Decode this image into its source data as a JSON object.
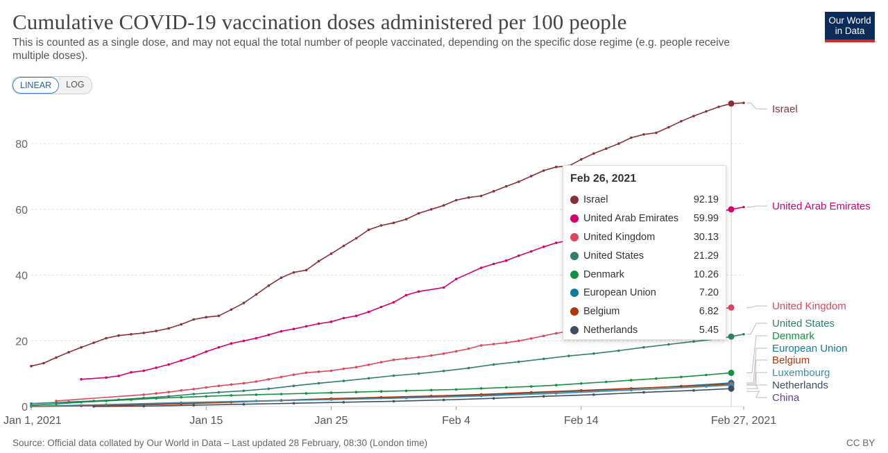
{
  "header": {
    "title": "Cumulative COVID-19 vaccination doses administered per 100 people",
    "subtitle": "This is counted as a single dose, and may not equal the total number of people vaccinated, depending on the specific dose regime (e.g. people receive multiple doses).",
    "logo_line1": "Our World",
    "logo_line2": "in Data"
  },
  "controls": {
    "linear_label": "LINEAR",
    "log_label": "LOG",
    "selected": "LINEAR"
  },
  "footer": {
    "source": "Source: Official data collated by Our World in Data – Last updated 28 February, 08:30 (London time)",
    "license": "CC BY"
  },
  "tooltip": {
    "date": "Feb 26, 2021",
    "rows": [
      {
        "name": "Israel",
        "value": "92.19",
        "color": "#883039"
      },
      {
        "name": "United Arab Emirates",
        "value": "59.99",
        "color": "#d5006e"
      },
      {
        "name": "United Kingdom",
        "value": "30.13",
        "color": "#e0455d"
      },
      {
        "name": "United States",
        "value": "21.29",
        "color": "#2f7f6c"
      },
      {
        "name": "Denmark",
        "value": "10.26",
        "color": "#14913e"
      },
      {
        "name": "European Union",
        "value": "7.20",
        "color": "#117aa0"
      },
      {
        "name": "Belgium",
        "value": "6.82",
        "color": "#b13507"
      },
      {
        "name": "Netherlands",
        "value": "5.45",
        "color": "#3c4e66"
      }
    ]
  },
  "chart_data": {
    "type": "line",
    "title": "Cumulative COVID-19 vaccination doses administered per 100 people",
    "x_range": [
      "2021-01-01",
      "2021-02-27"
    ],
    "x_ticks": [
      "Jan 1, 2021",
      "Jan 15",
      "Jan 25",
      "Feb 4",
      "Feb 14",
      "Feb 27, 2021"
    ],
    "y_range": [
      0,
      95
    ],
    "y_ticks": [
      0,
      20,
      40,
      60,
      80
    ],
    "grid": "horizontal-dashed",
    "hover_date": "2021-02-26",
    "series": [
      {
        "name": "Israel",
        "color": "#883039",
        "points": [
          [
            "2021-01-01",
            12.3
          ],
          [
            "2021-01-02",
            13.2
          ],
          [
            "2021-01-03",
            14.9
          ],
          [
            "2021-01-04",
            16.5
          ],
          [
            "2021-01-05",
            18.0
          ],
          [
            "2021-01-06",
            19.4
          ],
          [
            "2021-01-07",
            20.8
          ],
          [
            "2021-01-08",
            21.6
          ],
          [
            "2021-01-09",
            22.0
          ],
          [
            "2021-01-10",
            22.4
          ],
          [
            "2021-01-11",
            23.0
          ],
          [
            "2021-01-12",
            23.8
          ],
          [
            "2021-01-13",
            25.0
          ],
          [
            "2021-01-14",
            26.5
          ],
          [
            "2021-01-15",
            27.2
          ],
          [
            "2021-01-16",
            27.6
          ],
          [
            "2021-01-17",
            29.5
          ],
          [
            "2021-01-18",
            31.5
          ],
          [
            "2021-01-19",
            34.1
          ],
          [
            "2021-01-20",
            36.8
          ],
          [
            "2021-01-21",
            39.2
          ],
          [
            "2021-01-22",
            40.8
          ],
          [
            "2021-01-23",
            41.5
          ],
          [
            "2021-01-24",
            44.2
          ],
          [
            "2021-01-25",
            46.5
          ],
          [
            "2021-01-26",
            48.9
          ],
          [
            "2021-01-27",
            51.2
          ],
          [
            "2021-01-28",
            53.8
          ],
          [
            "2021-01-29",
            55.1
          ],
          [
            "2021-01-30",
            55.9
          ],
          [
            "2021-01-31",
            57.0
          ],
          [
            "2021-02-01",
            58.8
          ],
          [
            "2021-02-02",
            60.0
          ],
          [
            "2021-02-03",
            61.2
          ],
          [
            "2021-02-04",
            62.8
          ],
          [
            "2021-02-05",
            63.6
          ],
          [
            "2021-02-06",
            64.1
          ],
          [
            "2021-02-07",
            65.5
          ],
          [
            "2021-02-08",
            67.0
          ],
          [
            "2021-02-09",
            68.4
          ],
          [
            "2021-02-10",
            70.1
          ],
          [
            "2021-02-11",
            71.8
          ],
          [
            "2021-02-12",
            72.9
          ],
          [
            "2021-02-13",
            73.2
          ],
          [
            "2021-02-14",
            75.2
          ],
          [
            "2021-02-15",
            77.0
          ],
          [
            "2021-02-16",
            78.5
          ],
          [
            "2021-02-17",
            80.0
          ],
          [
            "2021-02-18",
            81.8
          ],
          [
            "2021-02-19",
            82.8
          ],
          [
            "2021-02-20",
            83.3
          ],
          [
            "2021-02-21",
            85.0
          ],
          [
            "2021-02-22",
            86.8
          ],
          [
            "2021-02-23",
            88.4
          ],
          [
            "2021-02-24",
            89.8
          ],
          [
            "2021-02-25",
            91.2
          ],
          [
            "2021-02-26",
            92.19
          ],
          [
            "2021-02-27",
            92.4
          ]
        ]
      },
      {
        "name": "United Arab Emirates",
        "color": "#d5006e",
        "points": [
          [
            "2021-01-05",
            8.3
          ],
          [
            "2021-01-07",
            8.8
          ],
          [
            "2021-01-08",
            9.3
          ],
          [
            "2021-01-09",
            10.4
          ],
          [
            "2021-01-10",
            10.9
          ],
          [
            "2021-01-11",
            11.8
          ],
          [
            "2021-01-12",
            12.8
          ],
          [
            "2021-01-13",
            14.0
          ],
          [
            "2021-01-14",
            15.2
          ],
          [
            "2021-01-15",
            16.7
          ],
          [
            "2021-01-16",
            18.0
          ],
          [
            "2021-01-17",
            19.2
          ],
          [
            "2021-01-18",
            20.0
          ],
          [
            "2021-01-19",
            20.8
          ],
          [
            "2021-01-20",
            21.8
          ],
          [
            "2021-01-21",
            22.9
          ],
          [
            "2021-01-22",
            23.6
          ],
          [
            "2021-01-23",
            24.4
          ],
          [
            "2021-01-24",
            25.2
          ],
          [
            "2021-01-25",
            25.8
          ],
          [
            "2021-01-26",
            26.9
          ],
          [
            "2021-01-27",
            27.6
          ],
          [
            "2021-01-28",
            28.8
          ],
          [
            "2021-01-29",
            30.3
          ],
          [
            "2021-01-30",
            31.7
          ],
          [
            "2021-01-31",
            33.9
          ],
          [
            "2021-02-01",
            35.0
          ],
          [
            "2021-02-03",
            36.2
          ],
          [
            "2021-02-04",
            38.8
          ],
          [
            "2021-02-06",
            42.2
          ],
          [
            "2021-02-07",
            43.4
          ],
          [
            "2021-02-08",
            44.4
          ],
          [
            "2021-02-09",
            45.9
          ],
          [
            "2021-02-10",
            47.2
          ],
          [
            "2021-02-11",
            48.6
          ],
          [
            "2021-02-12",
            49.8
          ],
          [
            "2021-02-26",
            59.99
          ],
          [
            "2021-02-27",
            60.7
          ]
        ]
      },
      {
        "name": "United Kingdom",
        "color": "#e0455d",
        "points": [
          [
            "2021-01-03",
            1.7
          ],
          [
            "2021-01-10",
            3.6
          ],
          [
            "2021-01-11",
            4.0
          ],
          [
            "2021-01-12",
            4.4
          ],
          [
            "2021-01-13",
            4.9
          ],
          [
            "2021-01-14",
            5.3
          ],
          [
            "2021-01-15",
            5.8
          ],
          [
            "2021-01-16",
            6.3
          ],
          [
            "2021-01-17",
            6.7
          ],
          [
            "2021-01-18",
            7.1
          ],
          [
            "2021-01-19",
            7.6
          ],
          [
            "2021-01-20",
            8.3
          ],
          [
            "2021-01-21",
            9.0
          ],
          [
            "2021-01-22",
            9.7
          ],
          [
            "2021-01-23",
            10.3
          ],
          [
            "2021-01-24",
            10.6
          ],
          [
            "2021-01-25",
            10.9
          ],
          [
            "2021-01-26",
            11.5
          ],
          [
            "2021-01-27",
            12.0
          ],
          [
            "2021-01-28",
            12.7
          ],
          [
            "2021-01-29",
            13.5
          ],
          [
            "2021-01-30",
            14.2
          ],
          [
            "2021-01-31",
            14.6
          ],
          [
            "2021-02-01",
            15.0
          ],
          [
            "2021-02-02",
            15.5
          ],
          [
            "2021-02-03",
            16.1
          ],
          [
            "2021-02-04",
            16.8
          ],
          [
            "2021-02-05",
            17.6
          ],
          [
            "2021-02-06",
            18.6
          ],
          [
            "2021-02-07",
            19.0
          ],
          [
            "2021-02-08",
            19.4
          ],
          [
            "2021-02-09",
            20.0
          ],
          [
            "2021-02-10",
            20.7
          ],
          [
            "2021-02-11",
            21.5
          ],
          [
            "2021-02-12",
            22.3
          ],
          [
            "2021-02-13",
            22.9
          ],
          [
            "2021-02-26",
            30.13
          ]
        ]
      },
      {
        "name": "United States",
        "color": "#2f7f6c",
        "points": [
          [
            "2021-01-01",
            0.9
          ],
          [
            "2021-01-04",
            1.4
          ],
          [
            "2021-01-06",
            1.7
          ],
          [
            "2021-01-08",
            2.1
          ],
          [
            "2021-01-10",
            2.6
          ],
          [
            "2021-01-12",
            3.1
          ],
          [
            "2021-01-14",
            3.8
          ],
          [
            "2021-01-16",
            4.3
          ],
          [
            "2021-01-18",
            4.8
          ],
          [
            "2021-01-20",
            5.4
          ],
          [
            "2021-01-22",
            6.3
          ],
          [
            "2021-01-24",
            7.1
          ],
          [
            "2021-01-26",
            7.8
          ],
          [
            "2021-01-28",
            8.6
          ],
          [
            "2021-01-30",
            9.4
          ],
          [
            "2021-02-01",
            10.0
          ],
          [
            "2021-02-03",
            10.8
          ],
          [
            "2021-02-05",
            11.7
          ],
          [
            "2021-02-07",
            12.8
          ],
          [
            "2021-02-09",
            13.6
          ],
          [
            "2021-02-11",
            14.5
          ],
          [
            "2021-02-13",
            15.4
          ],
          [
            "2021-02-15",
            16.1
          ],
          [
            "2021-02-17",
            17.0
          ],
          [
            "2021-02-19",
            18.0
          ],
          [
            "2021-02-21",
            18.9
          ],
          [
            "2021-02-23",
            19.8
          ],
          [
            "2021-02-25",
            20.6
          ],
          [
            "2021-02-26",
            21.29
          ],
          [
            "2021-02-27",
            22.0
          ]
        ]
      },
      {
        "name": "Denmark",
        "color": "#14913e",
        "points": [
          [
            "2021-01-01",
            0.4
          ],
          [
            "2021-01-03",
            0.8
          ],
          [
            "2021-01-05",
            1.3
          ],
          [
            "2021-01-07",
            1.7
          ],
          [
            "2021-01-09",
            2.1
          ],
          [
            "2021-01-11",
            2.5
          ],
          [
            "2021-01-13",
            2.8
          ],
          [
            "2021-01-15",
            3.1
          ],
          [
            "2021-01-17",
            3.4
          ],
          [
            "2021-01-19",
            3.6
          ],
          [
            "2021-01-21",
            3.8
          ],
          [
            "2021-01-23",
            4.0
          ],
          [
            "2021-01-25",
            4.2
          ],
          [
            "2021-01-27",
            4.4
          ],
          [
            "2021-01-29",
            4.6
          ],
          [
            "2021-01-31",
            4.8
          ],
          [
            "2021-02-02",
            5.0
          ],
          [
            "2021-02-04",
            5.2
          ],
          [
            "2021-02-06",
            5.5
          ],
          [
            "2021-02-08",
            5.8
          ],
          [
            "2021-02-10",
            6.1
          ],
          [
            "2021-02-12",
            6.5
          ],
          [
            "2021-02-14",
            7.0
          ],
          [
            "2021-02-16",
            7.5
          ],
          [
            "2021-02-18",
            8.0
          ],
          [
            "2021-02-20",
            8.5
          ],
          [
            "2021-02-22",
            9.0
          ],
          [
            "2021-02-24",
            9.6
          ],
          [
            "2021-02-26",
            10.26
          ]
        ]
      },
      {
        "name": "European Union",
        "color": "#117aa0",
        "points": [
          [
            "2021-01-01",
            0.1
          ],
          [
            "2021-01-05",
            0.3
          ],
          [
            "2021-01-09",
            0.6
          ],
          [
            "2021-01-13",
            1.0
          ],
          [
            "2021-01-17",
            1.4
          ],
          [
            "2021-01-21",
            1.8
          ],
          [
            "2021-01-25",
            2.2
          ],
          [
            "2021-01-29",
            2.6
          ],
          [
            "2021-02-02",
            3.0
          ],
          [
            "2021-02-06",
            3.5
          ],
          [
            "2021-02-10",
            4.1
          ],
          [
            "2021-02-14",
            4.7
          ],
          [
            "2021-02-18",
            5.4
          ],
          [
            "2021-02-22",
            6.2
          ],
          [
            "2021-02-26",
            7.2
          ]
        ]
      },
      {
        "name": "Belgium",
        "color": "#b13507",
        "points": [
          [
            "2021-01-01",
            0.0
          ],
          [
            "2021-01-05",
            0.2
          ],
          [
            "2021-01-09",
            0.4
          ],
          [
            "2021-01-13",
            0.8
          ],
          [
            "2021-01-17",
            1.3
          ],
          [
            "2021-01-21",
            1.9
          ],
          [
            "2021-01-25",
            2.4
          ],
          [
            "2021-01-29",
            2.8
          ],
          [
            "2021-02-02",
            3.2
          ],
          [
            "2021-02-06",
            3.7
          ],
          [
            "2021-02-10",
            4.3
          ],
          [
            "2021-02-14",
            4.9
          ],
          [
            "2021-02-18",
            5.5
          ],
          [
            "2021-02-22",
            6.1
          ],
          [
            "2021-02-26",
            6.82
          ]
        ]
      },
      {
        "name": "Luxembourg",
        "color": "#3e8ca8",
        "points": [
          [
            "2021-01-01",
            0.1
          ],
          [
            "2021-01-07",
            0.6
          ],
          [
            "2021-01-13",
            1.2
          ],
          [
            "2021-01-19",
            1.7
          ],
          [
            "2021-01-25",
            2.1
          ],
          [
            "2021-01-31",
            2.6
          ],
          [
            "2021-02-06",
            3.2
          ],
          [
            "2021-02-12",
            4.0
          ],
          [
            "2021-02-18",
            5.0
          ],
          [
            "2021-02-24",
            6.1
          ],
          [
            "2021-02-26",
            6.5
          ]
        ]
      },
      {
        "name": "Netherlands",
        "color": "#3c4e66",
        "points": [
          [
            "2021-01-06",
            0.0
          ],
          [
            "2021-01-10",
            0.1
          ],
          [
            "2021-01-14",
            0.4
          ],
          [
            "2021-01-18",
            0.7
          ],
          [
            "2021-01-22",
            1.0
          ],
          [
            "2021-01-26",
            1.3
          ],
          [
            "2021-01-30",
            1.6
          ],
          [
            "2021-02-03",
            2.0
          ],
          [
            "2021-02-07",
            2.5
          ],
          [
            "2021-02-11",
            3.1
          ],
          [
            "2021-02-15",
            3.6
          ],
          [
            "2021-02-19",
            4.3
          ],
          [
            "2021-02-23",
            4.9
          ],
          [
            "2021-02-26",
            5.45
          ]
        ]
      },
      {
        "name": "China",
        "color": "#6a3d9a",
        "points": []
      }
    ]
  }
}
